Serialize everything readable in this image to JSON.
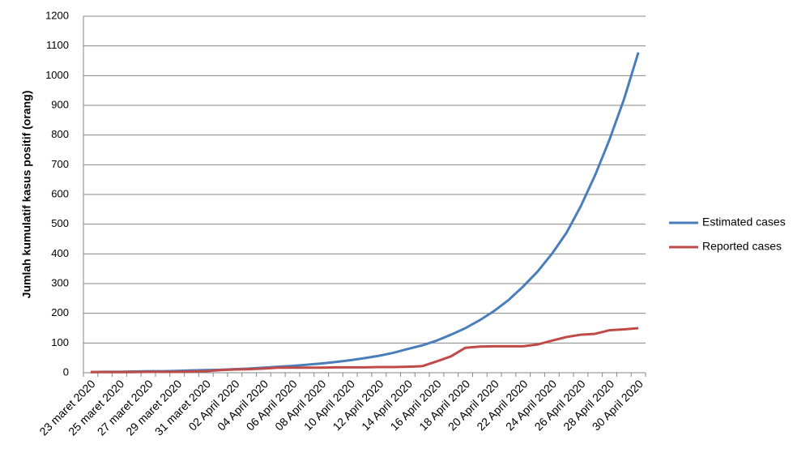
{
  "chart_data": {
    "type": "line",
    "y_label": "Jumlah kumulatif kasus positif (orang)",
    "categories": [
      "23 maret 2020",
      null,
      "25 maret 2020",
      null,
      "27 maret 2020",
      null,
      "29 maret 2020",
      null,
      "31 maret 2020",
      null,
      "02 April 2020",
      null,
      "04 April 2020",
      null,
      "06 April 2020",
      null,
      "08 April 2020",
      null,
      "10 April 2020",
      null,
      "12 April 2020",
      null,
      "14 April 2020",
      null,
      "16 April 2020",
      null,
      "18 April 2020",
      null,
      "20 April 2020",
      null,
      "22 April 2020",
      null,
      "24 April 2020",
      null,
      "26 April 2020",
      null,
      "28 April 2020",
      null,
      "30 April 2020"
    ],
    "series": [
      {
        "name": "Estimated cases",
        "color": "#4a7ebb",
        "values": [
          2,
          3,
          3,
          4,
          5,
          5,
          6,
          8,
          9,
          10,
          12,
          14,
          17,
          20,
          23,
          27,
          31,
          36,
          42,
          49,
          57,
          67,
          80,
          92,
          108,
          128,
          150,
          177,
          208,
          245,
          290,
          340,
          400,
          470,
          560,
          665,
          785,
          920,
          1078
        ]
      },
      {
        "name": "Reported cases",
        "color": "#be4b48",
        "values": [
          2,
          2,
          2,
          2,
          3,
          3,
          3,
          4,
          5,
          9,
          11,
          12,
          14,
          17,
          17,
          17,
          17,
          18,
          18,
          18,
          19,
          19,
          20,
          22,
          38,
          55,
          84,
          88,
          89,
          89,
          89,
          95,
          108,
          120,
          128,
          131,
          143,
          146,
          150
        ]
      }
    ],
    "ylim": [
      0,
      1200
    ],
    "yticks": [
      0,
      100,
      200,
      300,
      400,
      500,
      600,
      700,
      800,
      900,
      1000,
      1100,
      1200
    ],
    "grid": true,
    "legend": "right"
  }
}
